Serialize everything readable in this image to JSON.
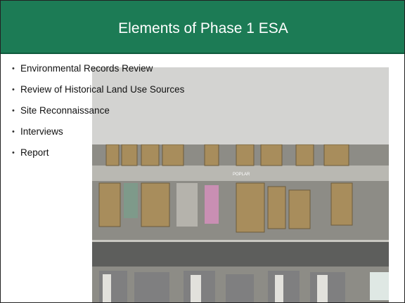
{
  "header": {
    "title": "Elements of Phase 1 ESA"
  },
  "bullets": [
    "Environmental Records Review",
    "Review of Historical Land Use Sources",
    "Site Reconnaissance",
    "Interviews",
    "Report"
  ],
  "image": {
    "street_label": "POPLAR"
  }
}
